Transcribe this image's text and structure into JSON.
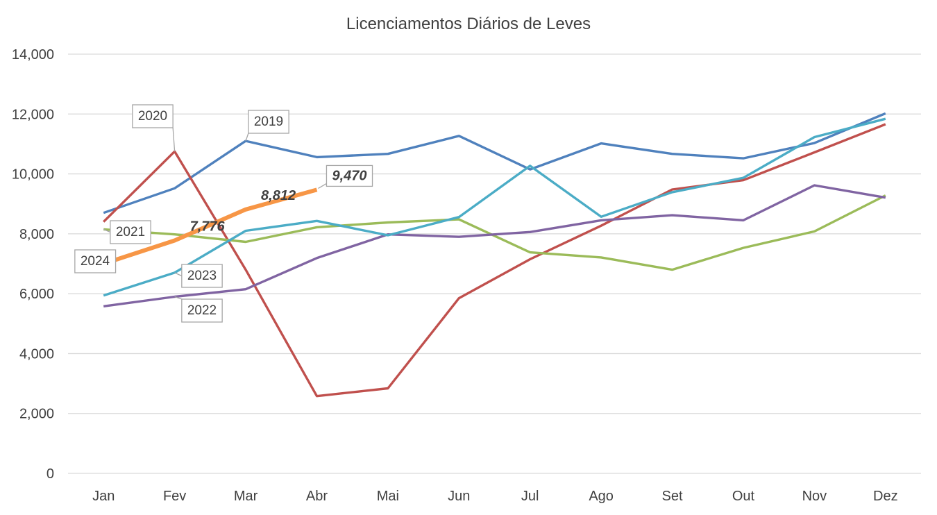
{
  "chart_data": {
    "type": "line",
    "title": "Licenciamentos Diários de Leves",
    "xlabel": "",
    "ylabel": "",
    "categories": [
      "Jan",
      "Fev",
      "Mar",
      "Abr",
      "Mai",
      "Jun",
      "Jul",
      "Ago",
      "Set",
      "Out",
      "Nov",
      "Dez"
    ],
    "ylim": [
      0,
      14000
    ],
    "yticks": [
      0,
      2000,
      4000,
      6000,
      8000,
      10000,
      12000,
      14000
    ],
    "ytick_labels": [
      "0",
      "2,000",
      "4,000",
      "6,000",
      "8,000",
      "10,000",
      "12,000",
      "14,000"
    ],
    "grid": "horizontal",
    "legend": "callout labels on lines",
    "series": [
      {
        "name": "2019",
        "color": "#4f81bd",
        "values": [
          8700,
          9520,
          11100,
          10560,
          10670,
          11270,
          10150,
          11020,
          10670,
          10520,
          11030,
          12020
        ]
      },
      {
        "name": "2020",
        "color": "#c0504d",
        "values": [
          8400,
          10750,
          6800,
          2580,
          2840,
          5850,
          7150,
          8270,
          9480,
          9790,
          10720,
          11660
        ]
      },
      {
        "name": "2021",
        "color": "#9bbb59",
        "values": [
          8150,
          7980,
          7730,
          8220,
          8380,
          8480,
          7380,
          7210,
          6800,
          7530,
          8080,
          9280
        ]
      },
      {
        "name": "2022",
        "color": "#8064a2",
        "values": [
          5580,
          5900,
          6150,
          7190,
          7980,
          7900,
          8060,
          8450,
          8620,
          8450,
          9620,
          9210
        ]
      },
      {
        "name": "2023",
        "color": "#4bacc6",
        "values": [
          5940,
          6700,
          8100,
          8430,
          7950,
          8560,
          10270,
          8570,
          9390,
          9870,
          11230,
          11840
        ]
      },
      {
        "name": "2024",
        "color": "#f79646",
        "values": [
          7000,
          7776,
          8812,
          9470,
          null,
          null,
          null,
          null,
          null,
          null,
          null,
          null
        ]
      }
    ],
    "data_labels": [
      {
        "series": "2024",
        "category": "Fev",
        "text": "7,776"
      },
      {
        "series": "2024",
        "category": "Mar",
        "text": "8,812"
      },
      {
        "series": "2024",
        "category": "Abr",
        "text": "9,470"
      }
    ]
  }
}
